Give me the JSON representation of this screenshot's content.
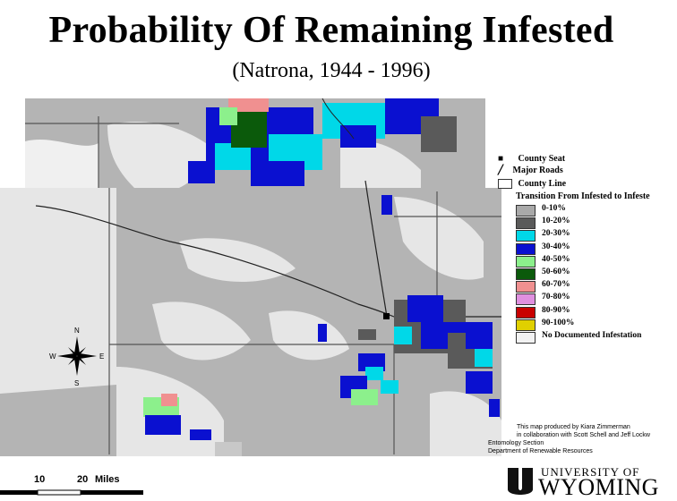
{
  "title": "Probability Of Remaining Infested",
  "subtitle": "(Natrona, 1944 - 1996)",
  "legend": {
    "county_seat": "County Seat",
    "major_roads": "Major Roads",
    "county_line": "County Line",
    "heading": "Transition From Infested to Infeste",
    "classes": [
      {
        "label": "0-10%",
        "color": "#a9a9a9"
      },
      {
        "label": "10-20%",
        "color": "#5a5a5a"
      },
      {
        "label": "20-30%",
        "color": "#00d8e8"
      },
      {
        "label": "30-40%",
        "color": "#0a10d0"
      },
      {
        "label": "40-50%",
        "color": "#8cf08c"
      },
      {
        "label": "50-60%",
        "color": "#0b5a0b"
      },
      {
        "label": "60-70%",
        "color": "#f09090"
      },
      {
        "label": "70-80%",
        "color": "#e090e0"
      },
      {
        "label": "80-90%",
        "color": "#c80000"
      },
      {
        "label": "90-100%",
        "color": "#e0d000"
      },
      {
        "label": "No Documented Infestation",
        "color": "#f2f2f2"
      }
    ]
  },
  "compass": {
    "n": "N",
    "s": "S",
    "e": "E",
    "w": "W"
  },
  "scale_bar": {
    "label_10": "10",
    "label_20": "20",
    "unit": "Miles"
  },
  "credits": [
    "This map produced by Kiara Zimmerman",
    "in collaboration with Scott Schell and Jeff Lockw",
    "Entomology Section",
    "Department of Renewable Resources"
  ],
  "logo": {
    "line1": "UNIVERSITY OF",
    "line2": "WYOMING"
  }
}
